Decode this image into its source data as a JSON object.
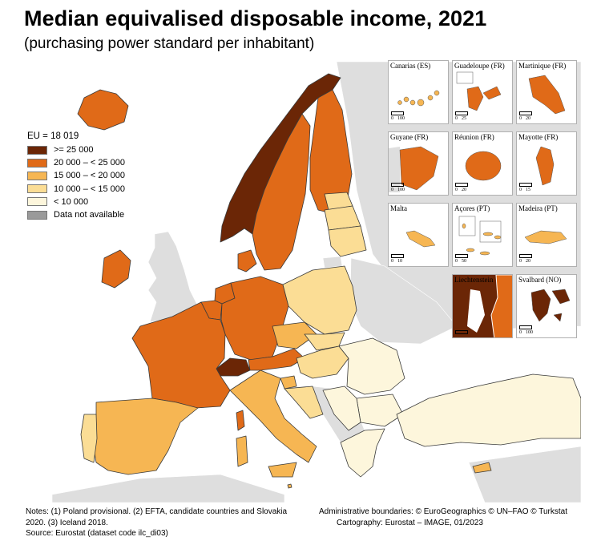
{
  "title": "Median equivalised disposable income, 2021",
  "subtitle": "(purchasing power standard per inhabitant)",
  "legend": {
    "title": "EU = 18 019",
    "items": [
      {
        "label": ">= 25 000",
        "color": "#6b2606"
      },
      {
        "label": "20 000 – < 25 000",
        "color": "#e06a18"
      },
      {
        "label": "15 000 – < 20 000",
        "color": "#f6b653"
      },
      {
        "label": "10 000 – < 15 000",
        "color": "#fbdd95"
      },
      {
        "label": "< 10 000",
        "color": "#fdf6dc"
      },
      {
        "label": "Data not available",
        "color": "#9a9a9a"
      }
    ]
  },
  "colors": {
    "sea": "#ffffff",
    "non_eu": "#dedede",
    "c1": "#6b2606",
    "c2": "#e06a18",
    "c3": "#f6b653",
    "c4": "#fbdd95",
    "c5": "#fdf6dc"
  },
  "insets": [
    {
      "label": "Canarias (ES)",
      "scale": [
        "0",
        "100"
      ]
    },
    {
      "label": "Guadeloupe (FR)",
      "scale": [
        "0",
        "25"
      ]
    },
    {
      "label": "Martinique (FR)",
      "scale": [
        "0",
        "20"
      ]
    },
    {
      "label": "Guyane (FR)",
      "scale": [
        "0",
        "100"
      ]
    },
    {
      "label": "Réunion (FR)",
      "scale": [
        "0",
        "20"
      ]
    },
    {
      "label": "Mayotte (FR)",
      "scale": [
        "0",
        "15"
      ]
    },
    {
      "label": "Malta",
      "scale": [
        "0",
        "10"
      ]
    },
    {
      "label": "Açores (PT)",
      "scale": [
        "0",
        "50"
      ]
    },
    {
      "label": "Madeira (PT)",
      "scale": [
        "0",
        "20"
      ]
    },
    {
      "label": "Liechtenstein",
      "scale": [
        "0",
        ""
      ]
    },
    {
      "label": "Svalbard (NO)",
      "scale": [
        "0",
        "100"
      ]
    }
  ],
  "notes": {
    "line1": "Notes: (1) Poland provisional. (2) EFTA, candidate countries and Slovakia",
    "line2": "2020. (3) Iceland 2018.",
    "line3": "Source: Eurostat (dataset code ilc_di03)"
  },
  "credits": {
    "line1": "Administrative boundaries: © EuroGeographics © UN–FAO © Turkstat",
    "line2": "Cartography: Eurostat – IMAGE, 01/2023"
  }
}
